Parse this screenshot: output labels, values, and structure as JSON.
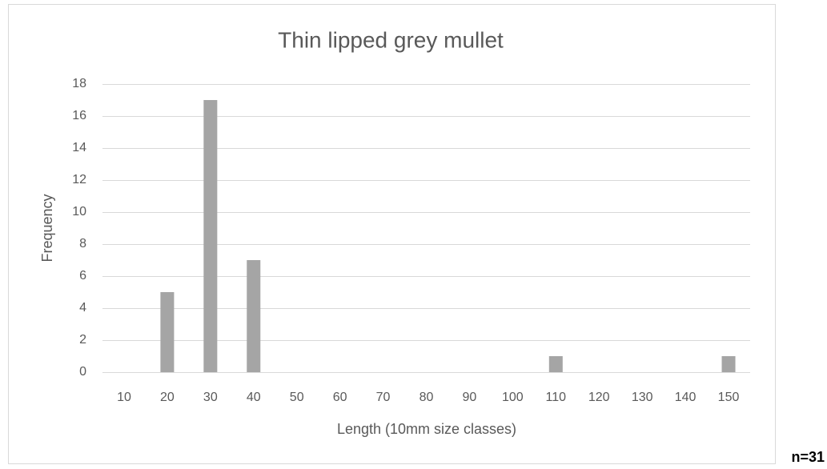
{
  "chart_data": {
    "type": "bar",
    "title": "Thin lipped grey mullet",
    "x_label": "Length (10mm size classes)",
    "y_label": "Frequency",
    "annotation": "n=31",
    "categories": [
      "10",
      "20",
      "30",
      "40",
      "50",
      "60",
      "70",
      "80",
      "90",
      "100",
      "110",
      "120",
      "130",
      "140",
      "150"
    ],
    "values": [
      0,
      5,
      17,
      7,
      0,
      0,
      0,
      0,
      0,
      0,
      1,
      0,
      0,
      0,
      1
    ],
    "color": "#a5a5a5",
    "ylim": [
      0,
      18
    ],
    "yticks": [
      0,
      2,
      4,
      6,
      8,
      10,
      12,
      14,
      16,
      18
    ],
    "grid": true
  }
}
